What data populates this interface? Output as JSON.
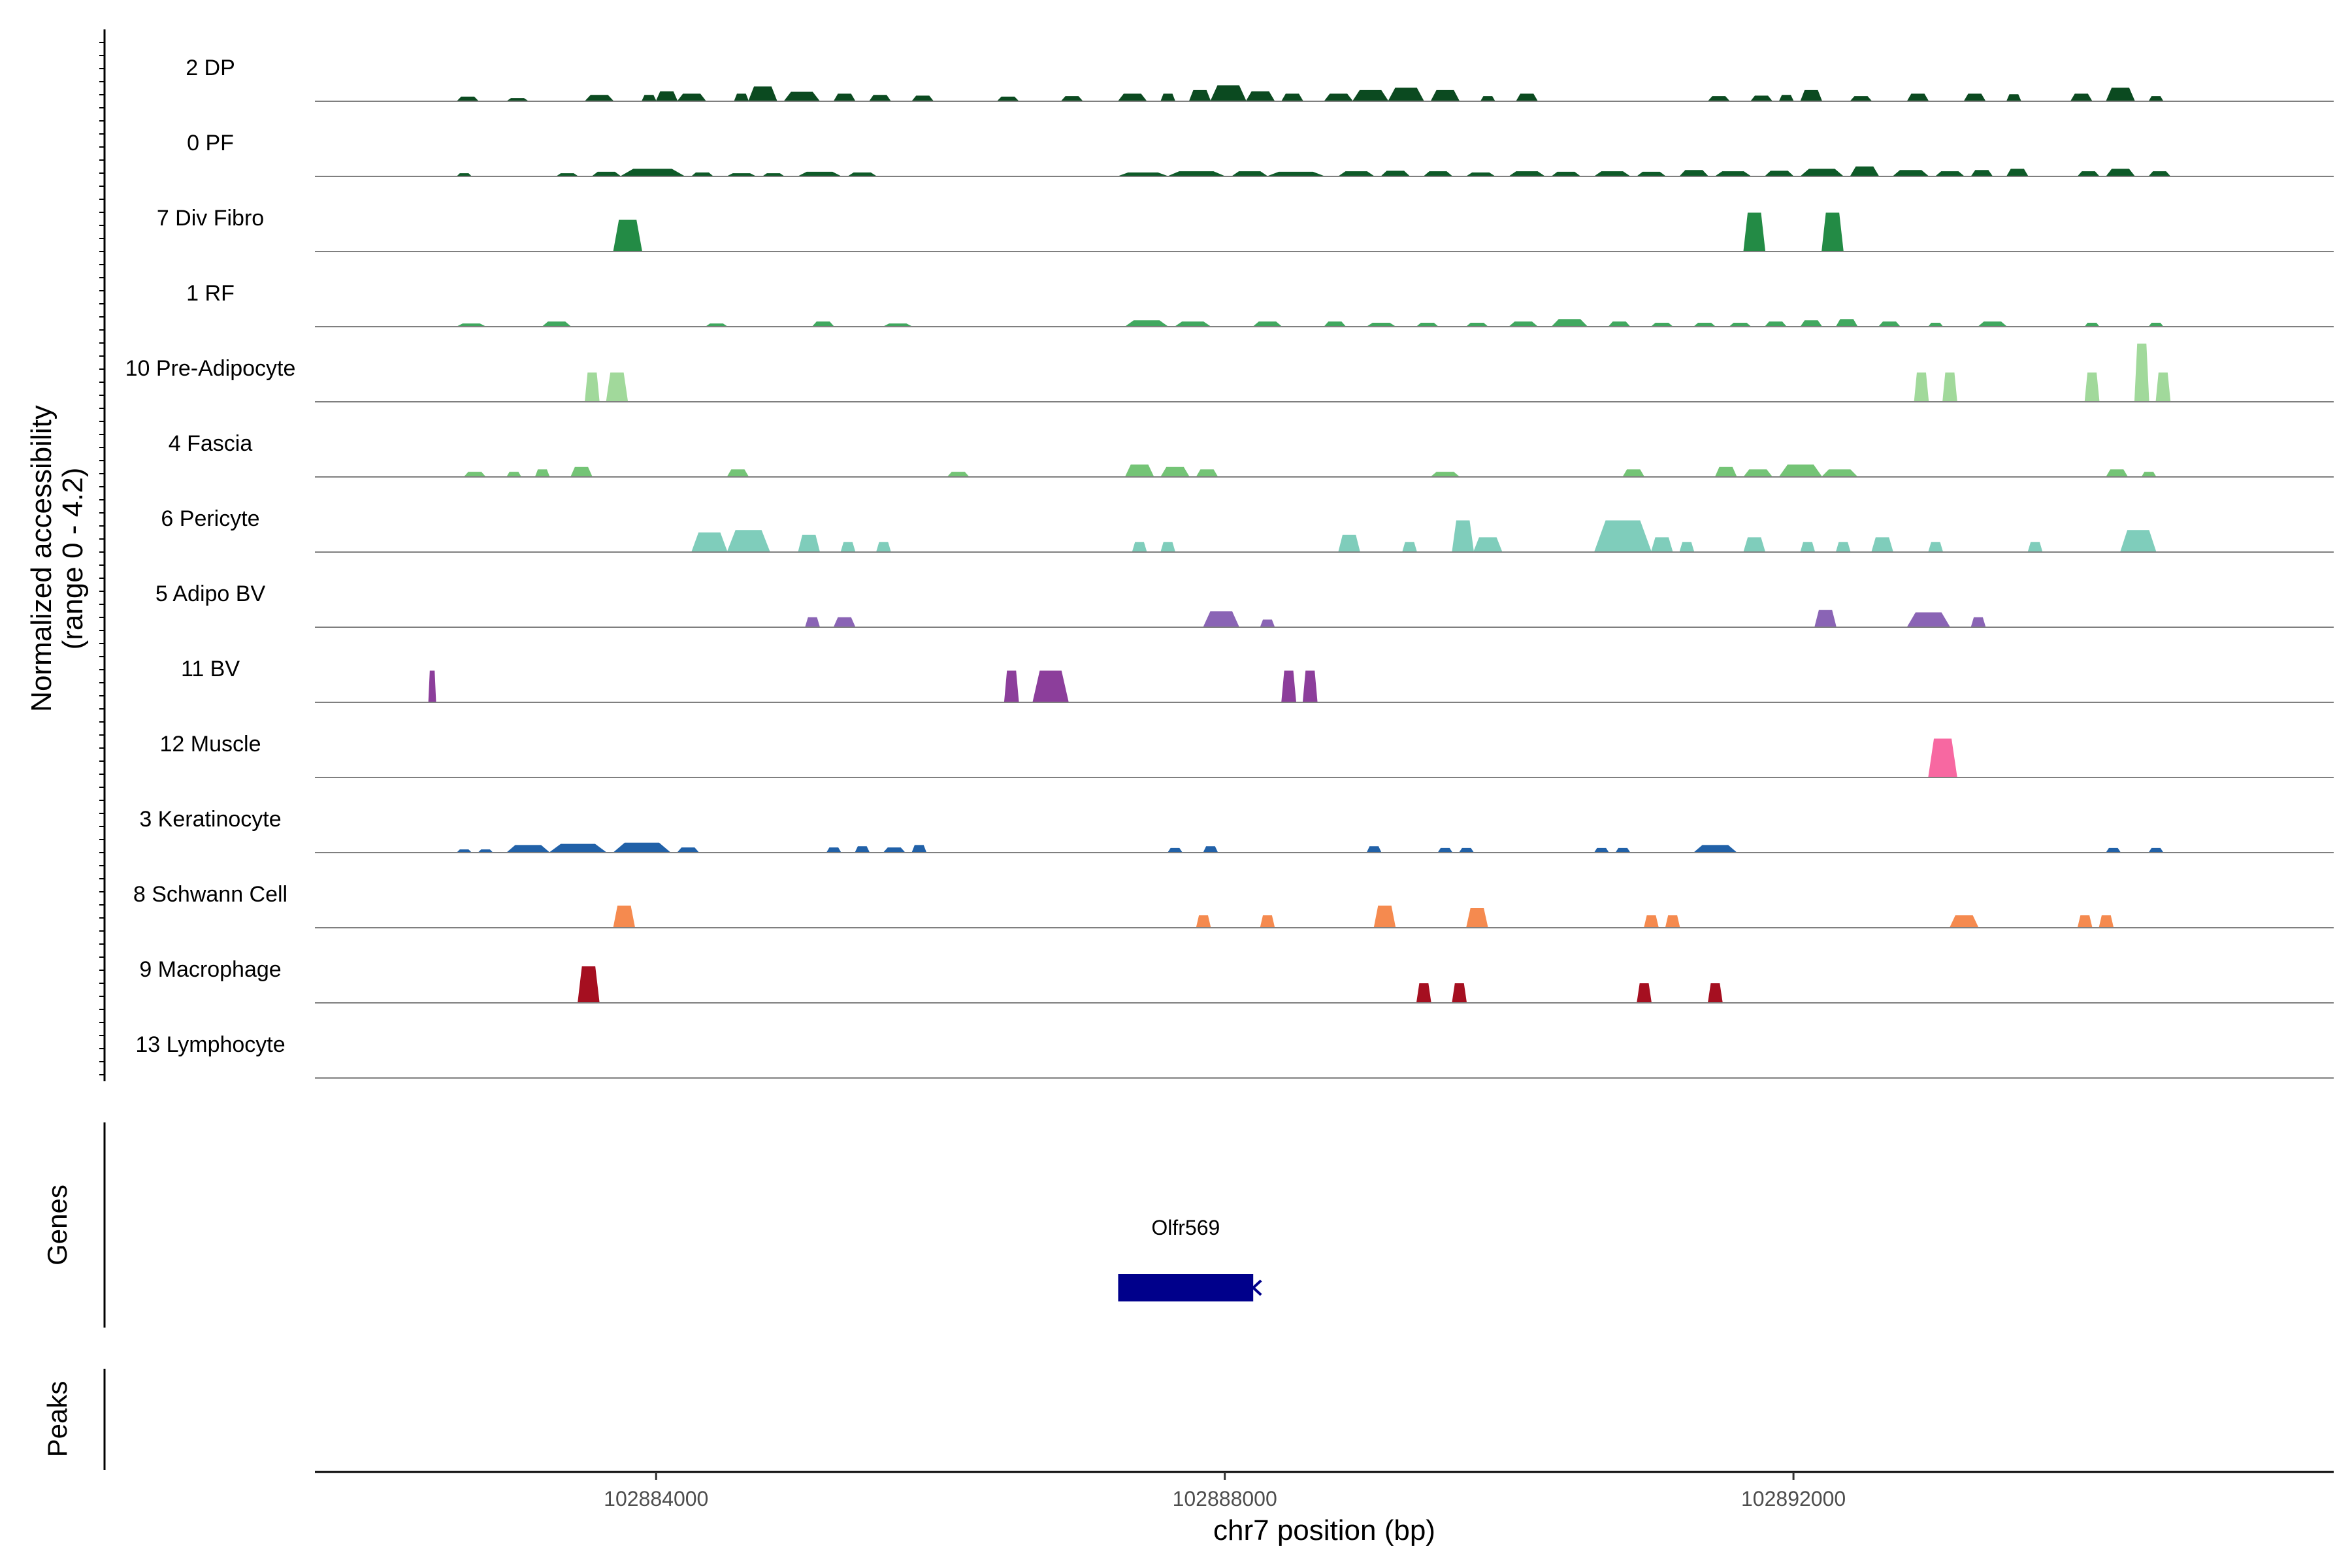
{
  "chart_data": {
    "type": "area",
    "title": "",
    "xlabel": "chr7 position (bp)",
    "ylabel_line1": "Normalized accessibility",
    "ylabel_line2": "(range 0 - 4.2)",
    "y_range": [
      0,
      4.2
    ],
    "xlim": [
      102881600,
      102895800
    ],
    "x_ticks": [
      102884000,
      102888000,
      102892000
    ],
    "x_tick_labels": [
      "102884000",
      "102888000",
      "102892000"
    ],
    "tracks": [
      {
        "name": "2 DP",
        "color": "#0B4A20",
        "peaks": [
          [
            102882600,
            102882750,
            0.18
          ],
          [
            102882950,
            102883100,
            0.12
          ],
          [
            102883500,
            102883700,
            0.25
          ],
          [
            102883900,
            102884000,
            0.25
          ],
          [
            102884000,
            102884150,
            0.4
          ],
          [
            102884150,
            102884350,
            0.3
          ],
          [
            102884550,
            102884650,
            0.3
          ],
          [
            102884650,
            102884850,
            0.6
          ],
          [
            102884900,
            102885150,
            0.38
          ],
          [
            102885250,
            102885400,
            0.3
          ],
          [
            102885500,
            102885650,
            0.25
          ],
          [
            102885800,
            102885950,
            0.22
          ],
          [
            102886400,
            102886550,
            0.18
          ],
          [
            102886850,
            102887000,
            0.2
          ],
          [
            102887250,
            102887450,
            0.3
          ],
          [
            102887550,
            102887650,
            0.3
          ],
          [
            102887750,
            102887900,
            0.45
          ],
          [
            102887900,
            102888150,
            0.65
          ],
          [
            102888150,
            102888350,
            0.4
          ],
          [
            102888400,
            102888550,
            0.3
          ],
          [
            102888700,
            102888900,
            0.3
          ],
          [
            102888900,
            102889150,
            0.45
          ],
          [
            102889150,
            102889400,
            0.55
          ],
          [
            102889450,
            102889650,
            0.45
          ],
          [
            102889800,
            102889900,
            0.2
          ],
          [
            102890050,
            102890200,
            0.3
          ],
          [
            102891400,
            102891550,
            0.2
          ],
          [
            102891700,
            102891850,
            0.22
          ],
          [
            102891900,
            102892000,
            0.25
          ],
          [
            102892050,
            102892200,
            0.45
          ],
          [
            102892400,
            102892550,
            0.2
          ],
          [
            102892800,
            102892950,
            0.3
          ],
          [
            102893200,
            102893350,
            0.3
          ],
          [
            102893500,
            102893600,
            0.28
          ],
          [
            102893950,
            102894100,
            0.3
          ],
          [
            102894200,
            102894400,
            0.55
          ],
          [
            102894500,
            102894600,
            0.2
          ]
        ]
      },
      {
        "name": "0 PF",
        "color": "#0E5A28",
        "peaks": [
          [
            102882600,
            102882700,
            0.12
          ],
          [
            102883300,
            102883450,
            0.12
          ],
          [
            102883550,
            102883750,
            0.18
          ],
          [
            102883750,
            102884200,
            0.3
          ],
          [
            102884250,
            102884400,
            0.15
          ],
          [
            102884500,
            102884700,
            0.12
          ],
          [
            102884750,
            102884900,
            0.12
          ],
          [
            102885000,
            102885300,
            0.18
          ],
          [
            102885350,
            102885550,
            0.15
          ],
          [
            102887250,
            102887600,
            0.15
          ],
          [
            102887600,
            102888000,
            0.2
          ],
          [
            102888050,
            102888300,
            0.2
          ],
          [
            102888300,
            102888700,
            0.18
          ],
          [
            102888800,
            102889050,
            0.2
          ],
          [
            102889100,
            102889300,
            0.22
          ],
          [
            102889400,
            102889600,
            0.2
          ],
          [
            102889700,
            102889900,
            0.15
          ],
          [
            102890000,
            102890250,
            0.2
          ],
          [
            102890300,
            102890500,
            0.18
          ],
          [
            102890600,
            102890850,
            0.2
          ],
          [
            102890900,
            102891100,
            0.18
          ],
          [
            102891200,
            102891400,
            0.25
          ],
          [
            102891450,
            102891700,
            0.2
          ],
          [
            102891800,
            102892000,
            0.22
          ],
          [
            102892050,
            102892350,
            0.3
          ],
          [
            102892400,
            102892600,
            0.4
          ],
          [
            102892700,
            102892950,
            0.25
          ],
          [
            102893000,
            102893200,
            0.2
          ],
          [
            102893250,
            102893400,
            0.25
          ],
          [
            102893500,
            102893650,
            0.3
          ],
          [
            102894000,
            102894150,
            0.2
          ],
          [
            102894200,
            102894400,
            0.3
          ],
          [
            102894500,
            102894650,
            0.2
          ]
        ]
      },
      {
        "name": "7 Div Fibro",
        "color": "#238B45",
        "peaks": [
          [
            102883700,
            102883900,
            1.3
          ],
          [
            102891650,
            102891800,
            1.6
          ],
          [
            102892200,
            102892350,
            1.6
          ]
        ]
      },
      {
        "name": "1 RF",
        "color": "#41A85F",
        "peaks": [
          [
            102882600,
            102882800,
            0.12
          ],
          [
            102883200,
            102883400,
            0.2
          ],
          [
            102884350,
            102884500,
            0.12
          ],
          [
            102885100,
            102885250,
            0.2
          ],
          [
            102885600,
            102885800,
            0.12
          ],
          [
            102887300,
            102887600,
            0.25
          ],
          [
            102887650,
            102887900,
            0.2
          ],
          [
            102888200,
            102888400,
            0.2
          ],
          [
            102888700,
            102888850,
            0.2
          ],
          [
            102889000,
            102889200,
            0.15
          ],
          [
            102889350,
            102889500,
            0.15
          ],
          [
            102889700,
            102889850,
            0.15
          ],
          [
            102890000,
            102890200,
            0.2
          ],
          [
            102890300,
            102890550,
            0.3
          ],
          [
            102890700,
            102890850,
            0.2
          ],
          [
            102891000,
            102891150,
            0.15
          ],
          [
            102891300,
            102891450,
            0.15
          ],
          [
            102891550,
            102891700,
            0.15
          ],
          [
            102891800,
            102891950,
            0.2
          ],
          [
            102892050,
            102892200,
            0.25
          ],
          [
            102892300,
            102892450,
            0.3
          ],
          [
            102892600,
            102892750,
            0.2
          ],
          [
            102892950,
            102893050,
            0.15
          ],
          [
            102893300,
            102893500,
            0.2
          ],
          [
            102894050,
            102894150,
            0.15
          ],
          [
            102894500,
            102894600,
            0.15
          ]
        ]
      },
      {
        "name": "10 Pre-Adipocyte",
        "color": "#A1D99B",
        "peaks": [
          [
            102883500,
            102883600,
            1.2
          ],
          [
            102883650,
            102883800,
            1.2
          ],
          [
            102892850,
            102892950,
            1.2
          ],
          [
            102893050,
            102893150,
            1.2
          ],
          [
            102894050,
            102894150,
            1.2
          ],
          [
            102894400,
            102894500,
            2.4
          ],
          [
            102894550,
            102894650,
            1.2
          ]
        ]
      },
      {
        "name": "4 Fascia",
        "color": "#74C476",
        "peaks": [
          [
            102882650,
            102882800,
            0.2
          ],
          [
            102882950,
            102883050,
            0.2
          ],
          [
            102883150,
            102883250,
            0.3
          ],
          [
            102883400,
            102883550,
            0.4
          ],
          [
            102884500,
            102884650,
            0.3
          ],
          [
            102886050,
            102886200,
            0.2
          ],
          [
            102887300,
            102887500,
            0.5
          ],
          [
            102887550,
            102887750,
            0.4
          ],
          [
            102887800,
            102887950,
            0.3
          ],
          [
            102889450,
            102889650,
            0.2
          ],
          [
            102890800,
            102890950,
            0.3
          ],
          [
            102891450,
            102891600,
            0.4
          ],
          [
            102891650,
            102891850,
            0.3
          ],
          [
            102891900,
            102892200,
            0.5
          ],
          [
            102892200,
            102892450,
            0.3
          ],
          [
            102894200,
            102894350,
            0.3
          ],
          [
            102894450,
            102894550,
            0.2
          ]
        ]
      },
      {
        "name": "6 Pericyte",
        "color": "#7FCDBB",
        "peaks": [
          [
            102884250,
            102884500,
            0.8
          ],
          [
            102884500,
            102884800,
            0.9
          ],
          [
            102885000,
            102885150,
            0.7
          ],
          [
            102885300,
            102885400,
            0.4
          ],
          [
            102885550,
            102885650,
            0.4
          ],
          [
            102887350,
            102887450,
            0.4
          ],
          [
            102887550,
            102887650,
            0.4
          ],
          [
            102888800,
            102888950,
            0.7
          ],
          [
            102889250,
            102889350,
            0.4
          ],
          [
            102889600,
            102889750,
            1.3
          ],
          [
            102889750,
            102889950,
            0.6
          ],
          [
            102890600,
            102891000,
            1.3
          ],
          [
            102891000,
            102891150,
            0.6
          ],
          [
            102891200,
            102891300,
            0.4
          ],
          [
            102891650,
            102891800,
            0.6
          ],
          [
            102892050,
            102892150,
            0.4
          ],
          [
            102892300,
            102892400,
            0.4
          ],
          [
            102892550,
            102892700,
            0.6
          ],
          [
            102892950,
            102893050,
            0.4
          ],
          [
            102893650,
            102893750,
            0.4
          ],
          [
            102894300,
            102894550,
            0.9
          ]
        ]
      },
      {
        "name": "5 Adipo BV",
        "color": "#8A64B5",
        "peaks": [
          [
            102885050,
            102885150,
            0.4
          ],
          [
            102885250,
            102885400,
            0.4
          ],
          [
            102887850,
            102888100,
            0.65
          ],
          [
            102888250,
            102888350,
            0.3
          ],
          [
            102892150,
            102892300,
            0.7
          ],
          [
            102892800,
            102893100,
            0.6
          ],
          [
            102893250,
            102893350,
            0.4
          ]
        ]
      },
      {
        "name": "11 BV",
        "color": "#8C3E9B",
        "peaks": [
          [
            102882400,
            102882450,
            1.3
          ],
          [
            102886450,
            102886550,
            1.3
          ],
          [
            102886650,
            102886900,
            1.3
          ],
          [
            102888400,
            102888500,
            1.3
          ],
          [
            102888550,
            102888650,
            1.3
          ]
        ]
      },
      {
        "name": "12 Muscle",
        "color": "#F768A1",
        "peaks": [
          [
            102892950,
            102893150,
            1.6
          ]
        ]
      },
      {
        "name": "3 Keratinocyte",
        "color": "#2161A8",
        "peaks": [
          [
            102882600,
            102882700,
            0.12
          ],
          [
            102882750,
            102882850,
            0.12
          ],
          [
            102882950,
            102883250,
            0.3
          ],
          [
            102883250,
            102883650,
            0.35
          ],
          [
            102883700,
            102884100,
            0.4
          ],
          [
            102884150,
            102884300,
            0.2
          ],
          [
            102885200,
            102885300,
            0.2
          ],
          [
            102885400,
            102885500,
            0.25
          ],
          [
            102885600,
            102885750,
            0.2
          ],
          [
            102885800,
            102885900,
            0.3
          ],
          [
            102887600,
            102887700,
            0.18
          ],
          [
            102887850,
            102887950,
            0.25
          ],
          [
            102889000,
            102889100,
            0.25
          ],
          [
            102889500,
            102889600,
            0.18
          ],
          [
            102889650,
            102889750,
            0.18
          ],
          [
            102890600,
            102890700,
            0.18
          ],
          [
            102890750,
            102890850,
            0.18
          ],
          [
            102891300,
            102891600,
            0.3
          ],
          [
            102894200,
            102894300,
            0.18
          ],
          [
            102894500,
            102894600,
            0.18
          ]
        ]
      },
      {
        "name": "8 Schwann Cell",
        "color": "#F58A4F",
        "peaks": [
          [
            102883700,
            102883850,
            0.9
          ],
          [
            102887800,
            102887900,
            0.5
          ],
          [
            102888250,
            102888350,
            0.5
          ],
          [
            102889050,
            102889200,
            0.9
          ],
          [
            102889700,
            102889850,
            0.8
          ],
          [
            102890950,
            102891050,
            0.5
          ],
          [
            102891100,
            102891200,
            0.5
          ],
          [
            102893100,
            102893300,
            0.5
          ],
          [
            102894000,
            102894100,
            0.5
          ],
          [
            102894150,
            102894250,
            0.5
          ]
        ]
      },
      {
        "name": "9 Macrophage",
        "color": "#A50F20",
        "peaks": [
          [
            102883450,
            102883600,
            1.5
          ],
          [
            102889350,
            102889450,
            0.8
          ],
          [
            102889600,
            102889700,
            0.8
          ],
          [
            102890900,
            102891000,
            0.8
          ],
          [
            102891400,
            102891500,
            0.8
          ]
        ]
      },
      {
        "name": "13 Lymphocyte",
        "color": "#BDBDBD",
        "peaks": []
      }
    ],
    "genes_title": "Genes",
    "genes": [
      {
        "name": "Olfr569",
        "start": 102887250,
        "end": 102888200,
        "strand": "-",
        "color": "#00008B"
      }
    ],
    "peaks_title": "Peaks",
    "peak_intervals": []
  }
}
